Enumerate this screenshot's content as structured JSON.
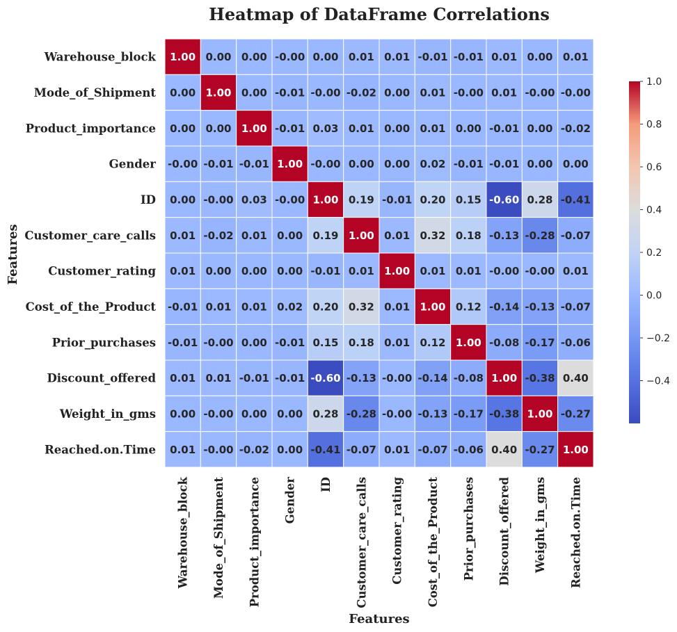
{
  "chart_data": {
    "type": "heatmap",
    "title": "Heatmap of DataFrame Correlations",
    "xlabel": "Features",
    "ylabel": "Features",
    "colormap": "coolwarm",
    "value_range": [
      -0.6,
      1.0
    ],
    "annotation_format": "2 decimals",
    "colorbar_ticks": [
      "1.0",
      "0.8",
      "0.6",
      "0.4",
      "0.2",
      "0.0",
      "−0.2",
      "−0.4"
    ],
    "colorbar_tick_values": [
      1.0,
      0.8,
      0.6,
      0.4,
      0.2,
      0.0,
      -0.2,
      -0.4
    ],
    "labels": [
      "Warehouse_block",
      "Mode_of_Shipment",
      "Product_importance",
      "Gender",
      "ID",
      "Customer_care_calls",
      "Customer_rating",
      "Cost_of_the_Product",
      "Prior_purchases",
      "Discount_offered",
      "Weight_in_gms",
      "Reached.on.Time"
    ],
    "matrix": [
      [
        "1.00",
        "0.00",
        "0.00",
        "-0.00",
        "0.00",
        "0.01",
        "0.01",
        "-0.01",
        "-0.01",
        "0.01",
        "0.00",
        "0.01"
      ],
      [
        "0.00",
        "1.00",
        "0.00",
        "-0.01",
        "-0.00",
        "-0.02",
        "0.00",
        "0.01",
        "-0.00",
        "0.01",
        "-0.00",
        "-0.00"
      ],
      [
        "0.00",
        "0.00",
        "1.00",
        "-0.01",
        "0.03",
        "0.01",
        "0.00",
        "0.01",
        "0.00",
        "-0.01",
        "0.00",
        "-0.02"
      ],
      [
        "-0.00",
        "-0.01",
        "-0.01",
        "1.00",
        "-0.00",
        "0.00",
        "0.00",
        "0.02",
        "-0.01",
        "-0.01",
        "0.00",
        "0.00"
      ],
      [
        "0.00",
        "-0.00",
        "0.03",
        "-0.00",
        "1.00",
        "0.19",
        "-0.01",
        "0.20",
        "0.15",
        "-0.60",
        "0.28",
        "-0.41"
      ],
      [
        "0.01",
        "-0.02",
        "0.01",
        "0.00",
        "0.19",
        "1.00",
        "0.01",
        "0.32",
        "0.18",
        "-0.13",
        "-0.28",
        "-0.07"
      ],
      [
        "0.01",
        "0.00",
        "0.00",
        "0.00",
        "-0.01",
        "0.01",
        "1.00",
        "0.01",
        "0.01",
        "-0.00",
        "-0.00",
        "0.01"
      ],
      [
        "-0.01",
        "0.01",
        "0.01",
        "0.02",
        "0.20",
        "0.32",
        "0.01",
        "1.00",
        "0.12",
        "-0.14",
        "-0.13",
        "-0.07"
      ],
      [
        "-0.01",
        "-0.00",
        "0.00",
        "-0.01",
        "0.15",
        "0.18",
        "0.01",
        "0.12",
        "1.00",
        "-0.08",
        "-0.17",
        "-0.06"
      ],
      [
        "0.01",
        "0.01",
        "-0.01",
        "-0.01",
        "-0.60",
        "-0.13",
        "-0.00",
        "-0.14",
        "-0.08",
        "1.00",
        "-0.38",
        "0.40"
      ],
      [
        "0.00",
        "-0.00",
        "0.00",
        "0.00",
        "0.28",
        "-0.28",
        "-0.00",
        "-0.13",
        "-0.17",
        "-0.38",
        "1.00",
        "-0.27"
      ],
      [
        "0.01",
        "-0.00",
        "-0.02",
        "0.00",
        "-0.41",
        "-0.07",
        "0.01",
        "-0.07",
        "-0.06",
        "0.40",
        "-0.27",
        "1.00"
      ]
    ]
  }
}
